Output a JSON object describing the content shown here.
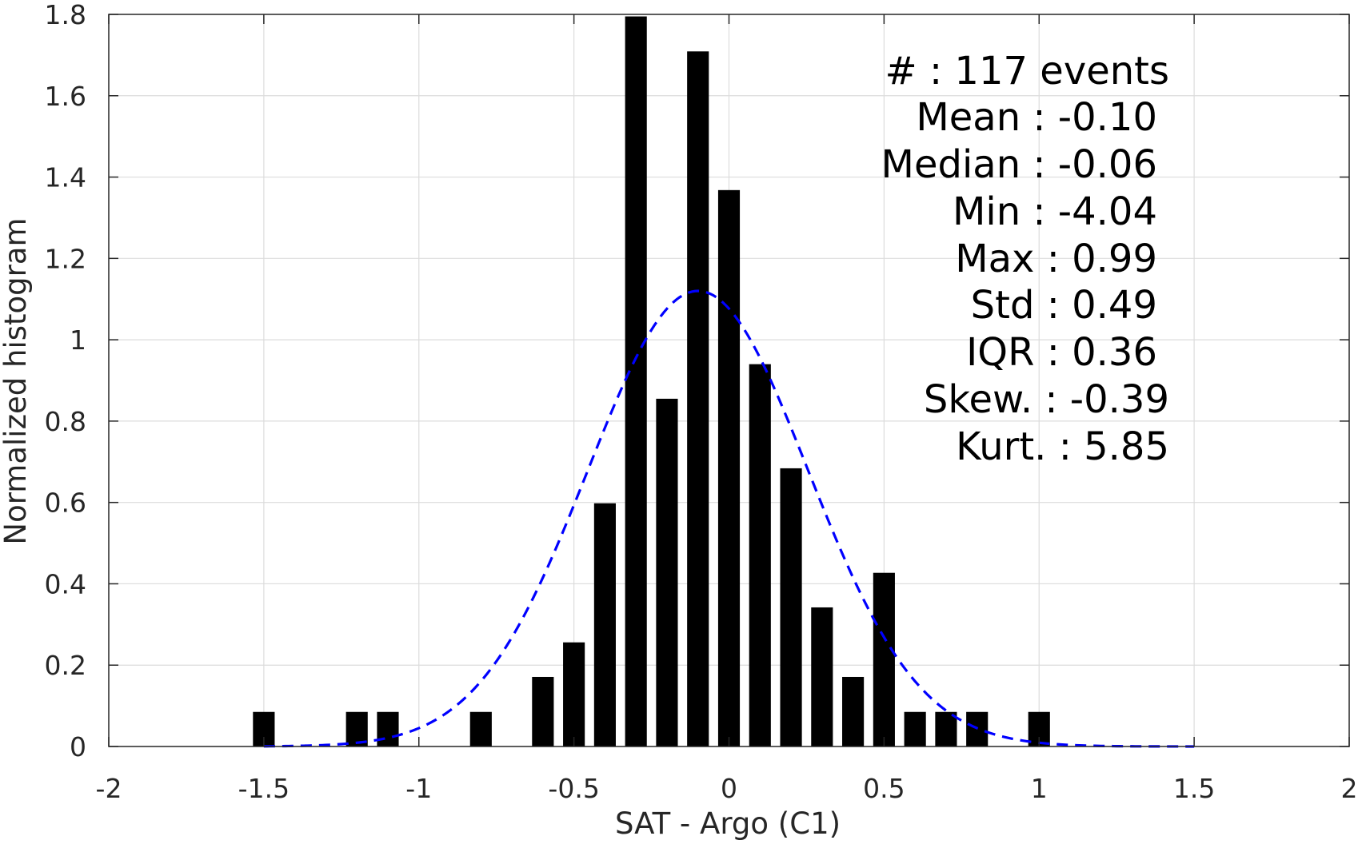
{
  "chart_data": {
    "type": "bar",
    "title": "",
    "xlabel": "SAT - Argo (C1)",
    "ylabel": "Normalized histogram",
    "xlim": [
      -2,
      2
    ],
    "ylim": [
      0,
      1.8
    ],
    "grid": true,
    "x_ticks": [
      "-2",
      "-1.5",
      "-1",
      "-0.5",
      "0",
      "0.5",
      "1",
      "1.5",
      "2"
    ],
    "y_ticks": [
      "0",
      "0.2",
      "0.4",
      "0.6",
      "0.8",
      "1",
      "1.2",
      "1.4",
      "1.6",
      "1.8"
    ],
    "bar_width": 0.07,
    "bar_color": "#000000",
    "bars": [
      {
        "x": -1.5,
        "y": 0.085
      },
      {
        "x": -1.2,
        "y": 0.085
      },
      {
        "x": -1.1,
        "y": 0.085
      },
      {
        "x": -0.8,
        "y": 0.085
      },
      {
        "x": -0.6,
        "y": 0.171
      },
      {
        "x": -0.5,
        "y": 0.256
      },
      {
        "x": -0.4,
        "y": 0.598
      },
      {
        "x": -0.3,
        "y": 1.795
      },
      {
        "x": -0.2,
        "y": 0.855
      },
      {
        "x": -0.1,
        "y": 1.709
      },
      {
        "x": 0.0,
        "y": 1.368
      },
      {
        "x": 0.1,
        "y": 0.94
      },
      {
        "x": 0.2,
        "y": 0.684
      },
      {
        "x": 0.3,
        "y": 0.342
      },
      {
        "x": 0.4,
        "y": 0.171
      },
      {
        "x": 0.5,
        "y": 0.427
      },
      {
        "x": 0.6,
        "y": 0.085
      },
      {
        "x": 0.7,
        "y": 0.085
      },
      {
        "x": 0.8,
        "y": 0.085
      },
      {
        "x": 1.0,
        "y": 0.085
      }
    ],
    "fit_curve": {
      "style": "dashed",
      "color": "#0000ff",
      "mean": -0.1,
      "std": 0.355,
      "peak": 1.12,
      "x_range": [
        -1.5,
        1.5
      ]
    },
    "annotations": [
      "#  : 117 events",
      "Mean : -0.10",
      "Median : -0.06",
      "Min : -4.04",
      "Max : 0.99",
      "Std : 0.49",
      "IQR : 0.36",
      "Skew. : -0.39",
      "Kurt. : 5.85"
    ]
  }
}
